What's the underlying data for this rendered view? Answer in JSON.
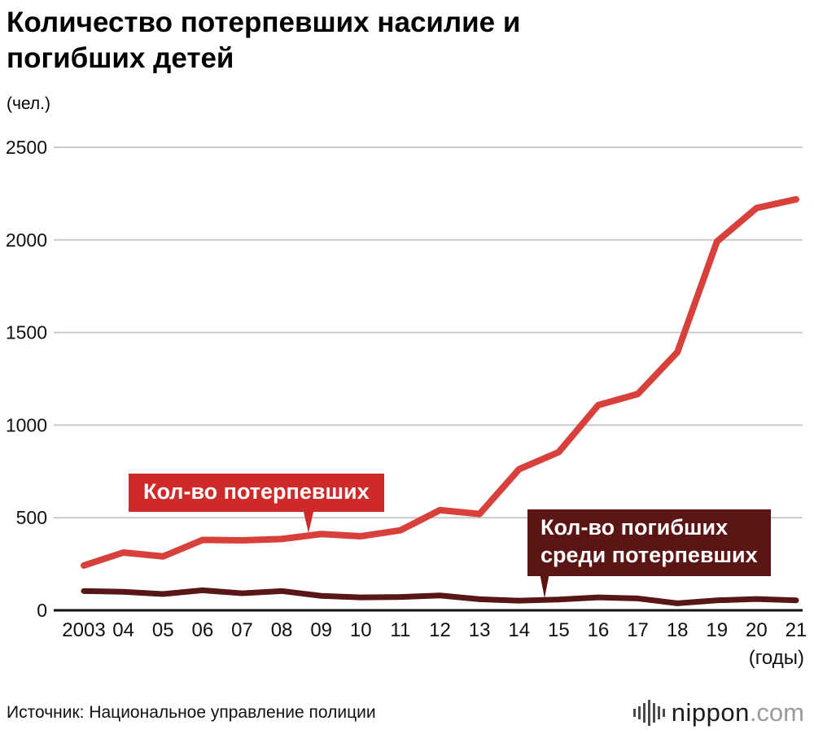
{
  "title_line1": "Количество потерпевших насилие и",
  "title_line2": "погибших детей",
  "unit_label": "(чел.)",
  "x_axis_suffix": "(годы)",
  "source": "Источник: Национальное управление полиции",
  "logo": {
    "name": "nippon",
    "domain": ".com"
  },
  "annotations": {
    "victims_label": "Кол-во потерпевших",
    "deaths_label_line1": "Кол-во погибших",
    "deaths_label_line2": "среди потерпевших"
  },
  "colors": {
    "victims_line": "#d8403c",
    "victims_box": "#ce2a29",
    "deaths_line": "#581616",
    "deaths_box": "#5b1514",
    "gridline": "#c9c9c9",
    "axis": "#111111"
  },
  "chart_data": {
    "type": "line",
    "categories": [
      "2003",
      "04",
      "05",
      "06",
      "07",
      "08",
      "09",
      "10",
      "11",
      "12",
      "13",
      "14",
      "15",
      "16",
      "17",
      "18",
      "19",
      "20",
      "21"
    ],
    "series": [
      {
        "name": "Кол-во потерпевших",
        "color": "#d8403c",
        "values": [
          242,
          312,
          291,
          380,
          378,
          385,
          412,
          400,
          432,
          541,
          520,
          762,
          854,
          1108,
          1168,
          1394,
          1991,
          2172,
          2219
        ]
      },
      {
        "name": "Кол-во погибших среди потерпевших",
        "color": "#581616",
        "values": [
          104,
          100,
          88,
          108,
          92,
          104,
          78,
          70,
          72,
          80,
          60,
          52,
          58,
          70,
          64,
          38,
          54,
          61,
          54
        ]
      }
    ],
    "title": "Количество потерпевших насилие и погибших детей",
    "xlabel": "(годы)",
    "ylabel": "(чел.)",
    "ylim": [
      0,
      2500
    ],
    "yticks": [
      0,
      500,
      1000,
      1500,
      2000,
      2500
    ],
    "grid": true,
    "legend_position": "inline-callouts"
  }
}
